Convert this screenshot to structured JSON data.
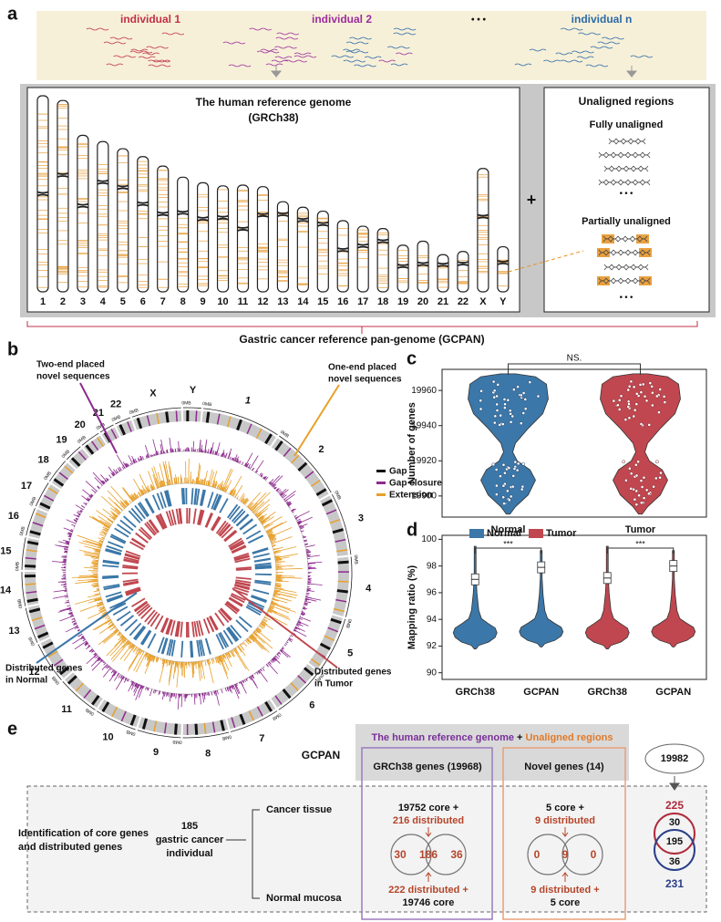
{
  "a": {
    "label": "a",
    "individuals": [
      "individual 1",
      "individual 2",
      "individual n"
    ],
    "ellipsis": "• • •",
    "reference_title": [
      "The human reference genome",
      "(GRCh38)"
    ],
    "chromosomes": [
      "1",
      "2",
      "3",
      "4",
      "5",
      "6",
      "7",
      "8",
      "9",
      "10",
      "11",
      "12",
      "13",
      "14",
      "15",
      "16",
      "17",
      "18",
      "19",
      "20",
      "21",
      "22",
      "X",
      "Y"
    ],
    "plus": "+",
    "unaligned_title": "Unaligned regions",
    "fully": "Fully unaligned",
    "partially": "Partially unaligned",
    "pangenome": "Gastric cancer reference pan-genome (GCPAN)"
  },
  "b": {
    "label": "b",
    "chromosomes": [
      "1",
      "2",
      "3",
      "4",
      "5",
      "6",
      "7",
      "8",
      "9",
      "10",
      "11",
      "12",
      "13",
      "14",
      "15",
      "16",
      "17",
      "18",
      "19",
      "20",
      "21",
      "22",
      "X",
      "Y"
    ],
    "tick_label": "0MB",
    "annotations": [
      [
        "Two-end placed",
        "novel sequences"
      ],
      [
        "One-end placed",
        "novel sequences"
      ],
      [
        "Distributed genes",
        "in Normal"
      ],
      [
        "Distributed genes",
        "in Tumor"
      ]
    ],
    "legend": [
      {
        "name": "Gap",
        "color": "#111111"
      },
      {
        "name": "Gap closure",
        "color": "#8e2a8e"
      },
      {
        "name": "Extension",
        "color": "#e8a02a"
      }
    ]
  },
  "chart_data": [
    {
      "type": "violin",
      "label": "c",
      "ylabel": "Number of genes",
      "categories": [
        "Normal",
        "Tumor"
      ],
      "colors": [
        "#3b77a8",
        "#c0474f"
      ],
      "ylim": [
        19888,
        19972
      ],
      "yticks": [
        19900,
        19920,
        19940,
        19960
      ],
      "annotation": "NS."
    },
    {
      "type": "violin",
      "label": "d",
      "ylabel": "Mapping ratio (%)",
      "categories": [
        "GRCh38",
        "GCPAN",
        "GRCh38",
        "GCPAN"
      ],
      "series": [
        {
          "name": "Normal",
          "color": "#3b77a8",
          "values": [
            97.0,
            97.9
          ]
        },
        {
          "name": "Tumor",
          "color": "#c0474f",
          "values": [
            97.1,
            98.0
          ]
        }
      ],
      "ylim": [
        89.5,
        100.3
      ],
      "yticks": [
        90,
        92,
        94,
        96,
        98,
        100
      ],
      "annotations": [
        "***",
        "***"
      ]
    }
  ],
  "e": {
    "label": "e",
    "gcpan": "GCPAN",
    "header": [
      "The human reference genome",
      "+",
      "Unaligned regions"
    ],
    "grch38": "GRCh38 genes (19968)",
    "novel": "Novel genes (14)",
    "left": [
      "Identification of core genes",
      "and distributed genes"
    ],
    "cohort": [
      "185",
      "gastric cancer",
      "individual"
    ],
    "tissues": [
      "Cancer tissue",
      "Normal mucosa"
    ],
    "grch38_venn": {
      "top": [
        "19752 core +",
        "216 distributed"
      ],
      "counts": [
        30,
        186,
        36
      ],
      "bottom": [
        "222 distributed +",
        "19746 core"
      ]
    },
    "novel_venn": {
      "top": [
        "5 core +",
        "9 distributed"
      ],
      "counts": [
        0,
        9,
        0
      ],
      "bottom": [
        "9 distributed +",
        "5 core"
      ]
    },
    "total": 19982,
    "union": {
      "tumor": 225,
      "counts": [
        30,
        195,
        36
      ],
      "normal": 231
    }
  }
}
